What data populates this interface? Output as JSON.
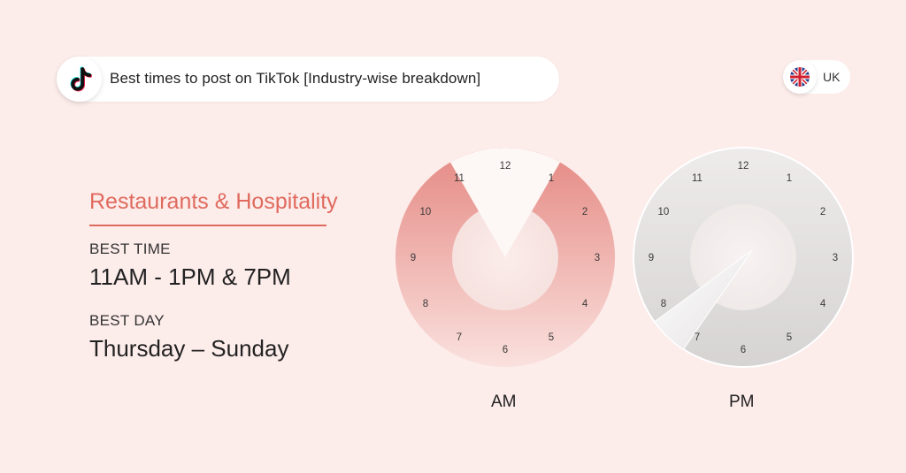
{
  "header": {
    "title": "Best times to post on TikTok [Industry-wise breakdown]",
    "logo_icon": "tiktok-logo-icon"
  },
  "region": {
    "label": "UK",
    "flag_icon": "uk-flag-icon"
  },
  "industry": "Restaurants & Hospitality",
  "best_time": {
    "label": "BEST TIME",
    "value": "11AM - 1PM & 7PM"
  },
  "best_day": {
    "label": "BEST DAY",
    "value": "Thursday – Sunday"
  },
  "clocks": [
    {
      "label": "AM",
      "numbers": [
        "12",
        "1",
        "2",
        "3",
        "4",
        "5",
        "6",
        "7",
        "8",
        "9",
        "10",
        "11"
      ],
      "highlight_from_hour": 11,
      "highlight_to_hour": 1,
      "theme": "pink"
    },
    {
      "label": "PM",
      "numbers": [
        "12",
        "1",
        "2",
        "3",
        "4",
        "5",
        "6",
        "7",
        "8",
        "9",
        "10",
        "11"
      ],
      "highlight_hour": 7,
      "theme": "grey"
    }
  ],
  "colors": {
    "background": "#fcecea",
    "accent": "#e06a5e",
    "am_ring_top": "#e8908a",
    "am_ring_bottom": "#f9dcd9",
    "pm_ring": "#dcdada"
  }
}
